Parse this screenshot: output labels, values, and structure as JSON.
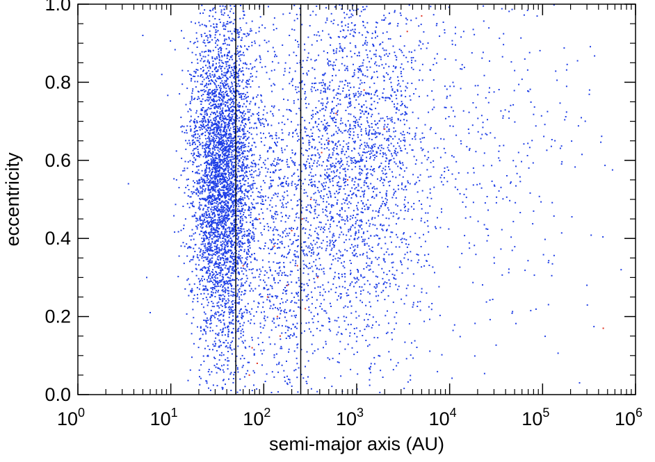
{
  "chart_data": {
    "type": "scatter",
    "xlabel": "semi-major axis (AU)",
    "ylabel": "eccentricity",
    "x_scale": "log",
    "xlim": [
      1,
      1000000
    ],
    "ylim": [
      0.0,
      1.0
    ],
    "x_ticks": [
      {
        "base": "10",
        "exp": "0"
      },
      {
        "base": "10",
        "exp": "1"
      },
      {
        "base": "10",
        "exp": "2"
      },
      {
        "base": "10",
        "exp": "3"
      },
      {
        "base": "10",
        "exp": "4"
      },
      {
        "base": "10",
        "exp": "5"
      },
      {
        "base": "10",
        "exp": "6"
      }
    ],
    "y_ticks": [
      "0.0",
      "0.2",
      "0.4",
      "0.6",
      "0.8",
      "1.0"
    ],
    "y_tick_values": [
      0.0,
      0.2,
      0.4,
      0.6,
      0.8,
      1.0
    ],
    "vertical_lines": [
      50,
      250
    ],
    "grid": false,
    "series": [
      {
        "color": "#1f3fe6",
        "clusters": [
          {
            "log_a_mean": 1.55,
            "log_a_sd": 0.17,
            "e_mean": 0.55,
            "e_sd": 0.22,
            "count": 4200
          },
          {
            "log_a_mean": 2.2,
            "log_a_sd": 0.28,
            "e_mean": 0.4,
            "e_sd": 0.25,
            "count": 900
          },
          {
            "log_a_mean": 3.0,
            "log_a_sd": 0.42,
            "e_mean": 0.6,
            "e_sd": 0.25,
            "count": 2300
          },
          {
            "log_a_mean": 4.2,
            "log_a_sd": 0.7,
            "e_mean": 0.7,
            "e_sd": 0.25,
            "count": 450
          }
        ],
        "points": [
          {
            "x": 3.5,
            "y": 0.54
          },
          {
            "x": 5.5,
            "y": 0.3
          },
          {
            "x": 6.0,
            "y": 0.21
          },
          {
            "x": 5.0,
            "y": 0.92
          },
          {
            "x": 8.0,
            "y": 0.82
          },
          {
            "x": 250000,
            "y": 0.03
          },
          {
            "x": 700000,
            "y": 0.32
          },
          {
            "x": 300000,
            "y": 0.28
          },
          {
            "x": 80000,
            "y": 0.47
          },
          {
            "x": 320000,
            "y": 0.78
          }
        ]
      },
      {
        "color": "#e0301e",
        "points": [
          {
            "x": 60,
            "y": 0.33
          },
          {
            "x": 75,
            "y": 0.12
          },
          {
            "x": 90,
            "y": 0.45
          },
          {
            "x": 110,
            "y": 0.25
          },
          {
            "x": 130,
            "y": 0.38
          },
          {
            "x": 150,
            "y": 0.15
          },
          {
            "x": 180,
            "y": 0.28
          },
          {
            "x": 200,
            "y": 0.42
          },
          {
            "x": 230,
            "y": 0.33
          },
          {
            "x": 280,
            "y": 0.22
          },
          {
            "x": 320,
            "y": 0.5
          },
          {
            "x": 380,
            "y": 0.3
          },
          {
            "x": 420,
            "y": 0.62
          },
          {
            "x": 500,
            "y": 0.65
          },
          {
            "x": 600,
            "y": 0.72
          },
          {
            "x": 800,
            "y": 0.55
          },
          {
            "x": 1200,
            "y": 0.78
          },
          {
            "x": 2000,
            "y": 0.68
          },
          {
            "x": 3500,
            "y": 0.93
          },
          {
            "x": 5000,
            "y": 0.97
          },
          {
            "x": 85,
            "y": 0.08
          },
          {
            "x": 140,
            "y": 0.2
          },
          {
            "x": 450000,
            "y": 0.17
          },
          {
            "x": 70,
            "y": 0.05
          },
          {
            "x": 260,
            "y": 0.45
          }
        ]
      }
    ]
  }
}
